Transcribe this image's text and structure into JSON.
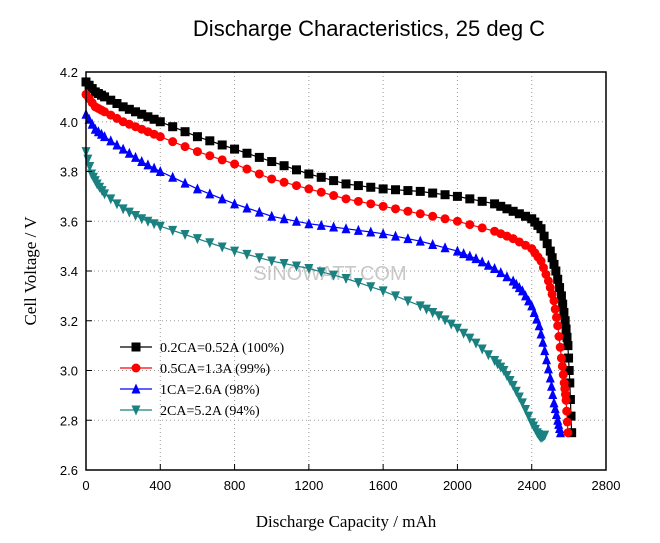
{
  "chart_data": {
    "type": "line",
    "title": "Discharge Characteristics, 25 deg C",
    "xlabel": "Discharge Capacity / mAh",
    "ylabel": "Cell Voltage / V",
    "xlim": [
      0,
      2800
    ],
    "ylim": [
      2.6,
      4.2
    ],
    "xticks": [
      "0",
      "400",
      "800",
      "1200",
      "1600",
      "2000",
      "2400",
      "2800"
    ],
    "yticks": [
      "2.6",
      "2.8",
      "3.0",
      "3.2",
      "3.4",
      "3.6",
      "3.8",
      "4.0",
      "4.2"
    ],
    "grid": true,
    "legend_position": "bottom-left",
    "watermark": "SINOWATT.COM",
    "series": [
      {
        "name": "0.2CA=0.52A (100%)",
        "color": "#000000",
        "marker": "square",
        "x": [
          0,
          50,
          100,
          200,
          300,
          400,
          600,
          800,
          1000,
          1200,
          1400,
          1600,
          1800,
          2000,
          2200,
          2300,
          2400,
          2450,
          2500,
          2530,
          2560,
          2580,
          2595,
          2605,
          2615
        ],
        "y": [
          4.16,
          4.12,
          4.1,
          4.06,
          4.03,
          4.0,
          3.94,
          3.89,
          3.84,
          3.79,
          3.75,
          3.73,
          3.72,
          3.7,
          3.67,
          3.64,
          3.61,
          3.57,
          3.48,
          3.4,
          3.3,
          3.2,
          3.1,
          2.95,
          2.75
        ]
      },
      {
        "name": "0.5CA=1.3A (99%)",
        "color": "#ff0000",
        "marker": "circle",
        "x": [
          0,
          50,
          100,
          200,
          300,
          400,
          600,
          800,
          1000,
          1200,
          1400,
          1600,
          1800,
          2000,
          2200,
          2300,
          2400,
          2450,
          2490,
          2520,
          2540,
          2560,
          2575,
          2585,
          2595
        ],
        "y": [
          4.11,
          4.06,
          4.04,
          4.0,
          3.97,
          3.94,
          3.88,
          3.83,
          3.77,
          3.73,
          3.69,
          3.66,
          3.63,
          3.6,
          3.56,
          3.53,
          3.49,
          3.44,
          3.36,
          3.28,
          3.18,
          3.05,
          2.95,
          2.88,
          2.75
        ]
      },
      {
        "name": "1CA=2.6A (98%)",
        "color": "#0000ff",
        "marker": "triangle-up",
        "x": [
          0,
          50,
          100,
          200,
          300,
          400,
          600,
          800,
          1000,
          1200,
          1400,
          1600,
          1800,
          2000,
          2100,
          2200,
          2300,
          2350,
          2400,
          2440,
          2470,
          2500,
          2520,
          2540,
          2555
        ],
        "y": [
          4.03,
          3.97,
          3.94,
          3.89,
          3.84,
          3.8,
          3.73,
          3.67,
          3.62,
          3.59,
          3.57,
          3.55,
          3.52,
          3.48,
          3.45,
          3.41,
          3.36,
          3.32,
          3.26,
          3.18,
          3.08,
          2.97,
          2.87,
          2.8,
          2.75
        ]
      },
      {
        "name": "2CA=5.2A (94%)",
        "color": "#1a8080",
        "marker": "triangle-down",
        "x": [
          0,
          30,
          60,
          100,
          200,
          300,
          400,
          600,
          800,
          1000,
          1200,
          1400,
          1600,
          1800,
          1900,
          2000,
          2100,
          2200,
          2250,
          2300,
          2350,
          2400,
          2430,
          2450,
          2470
        ],
        "y": [
          3.88,
          3.79,
          3.75,
          3.71,
          3.65,
          3.61,
          3.58,
          3.53,
          3.48,
          3.44,
          3.41,
          3.37,
          3.32,
          3.26,
          3.22,
          3.17,
          3.11,
          3.04,
          3.0,
          2.94,
          2.87,
          2.79,
          2.75,
          2.73,
          2.74
        ]
      }
    ]
  }
}
